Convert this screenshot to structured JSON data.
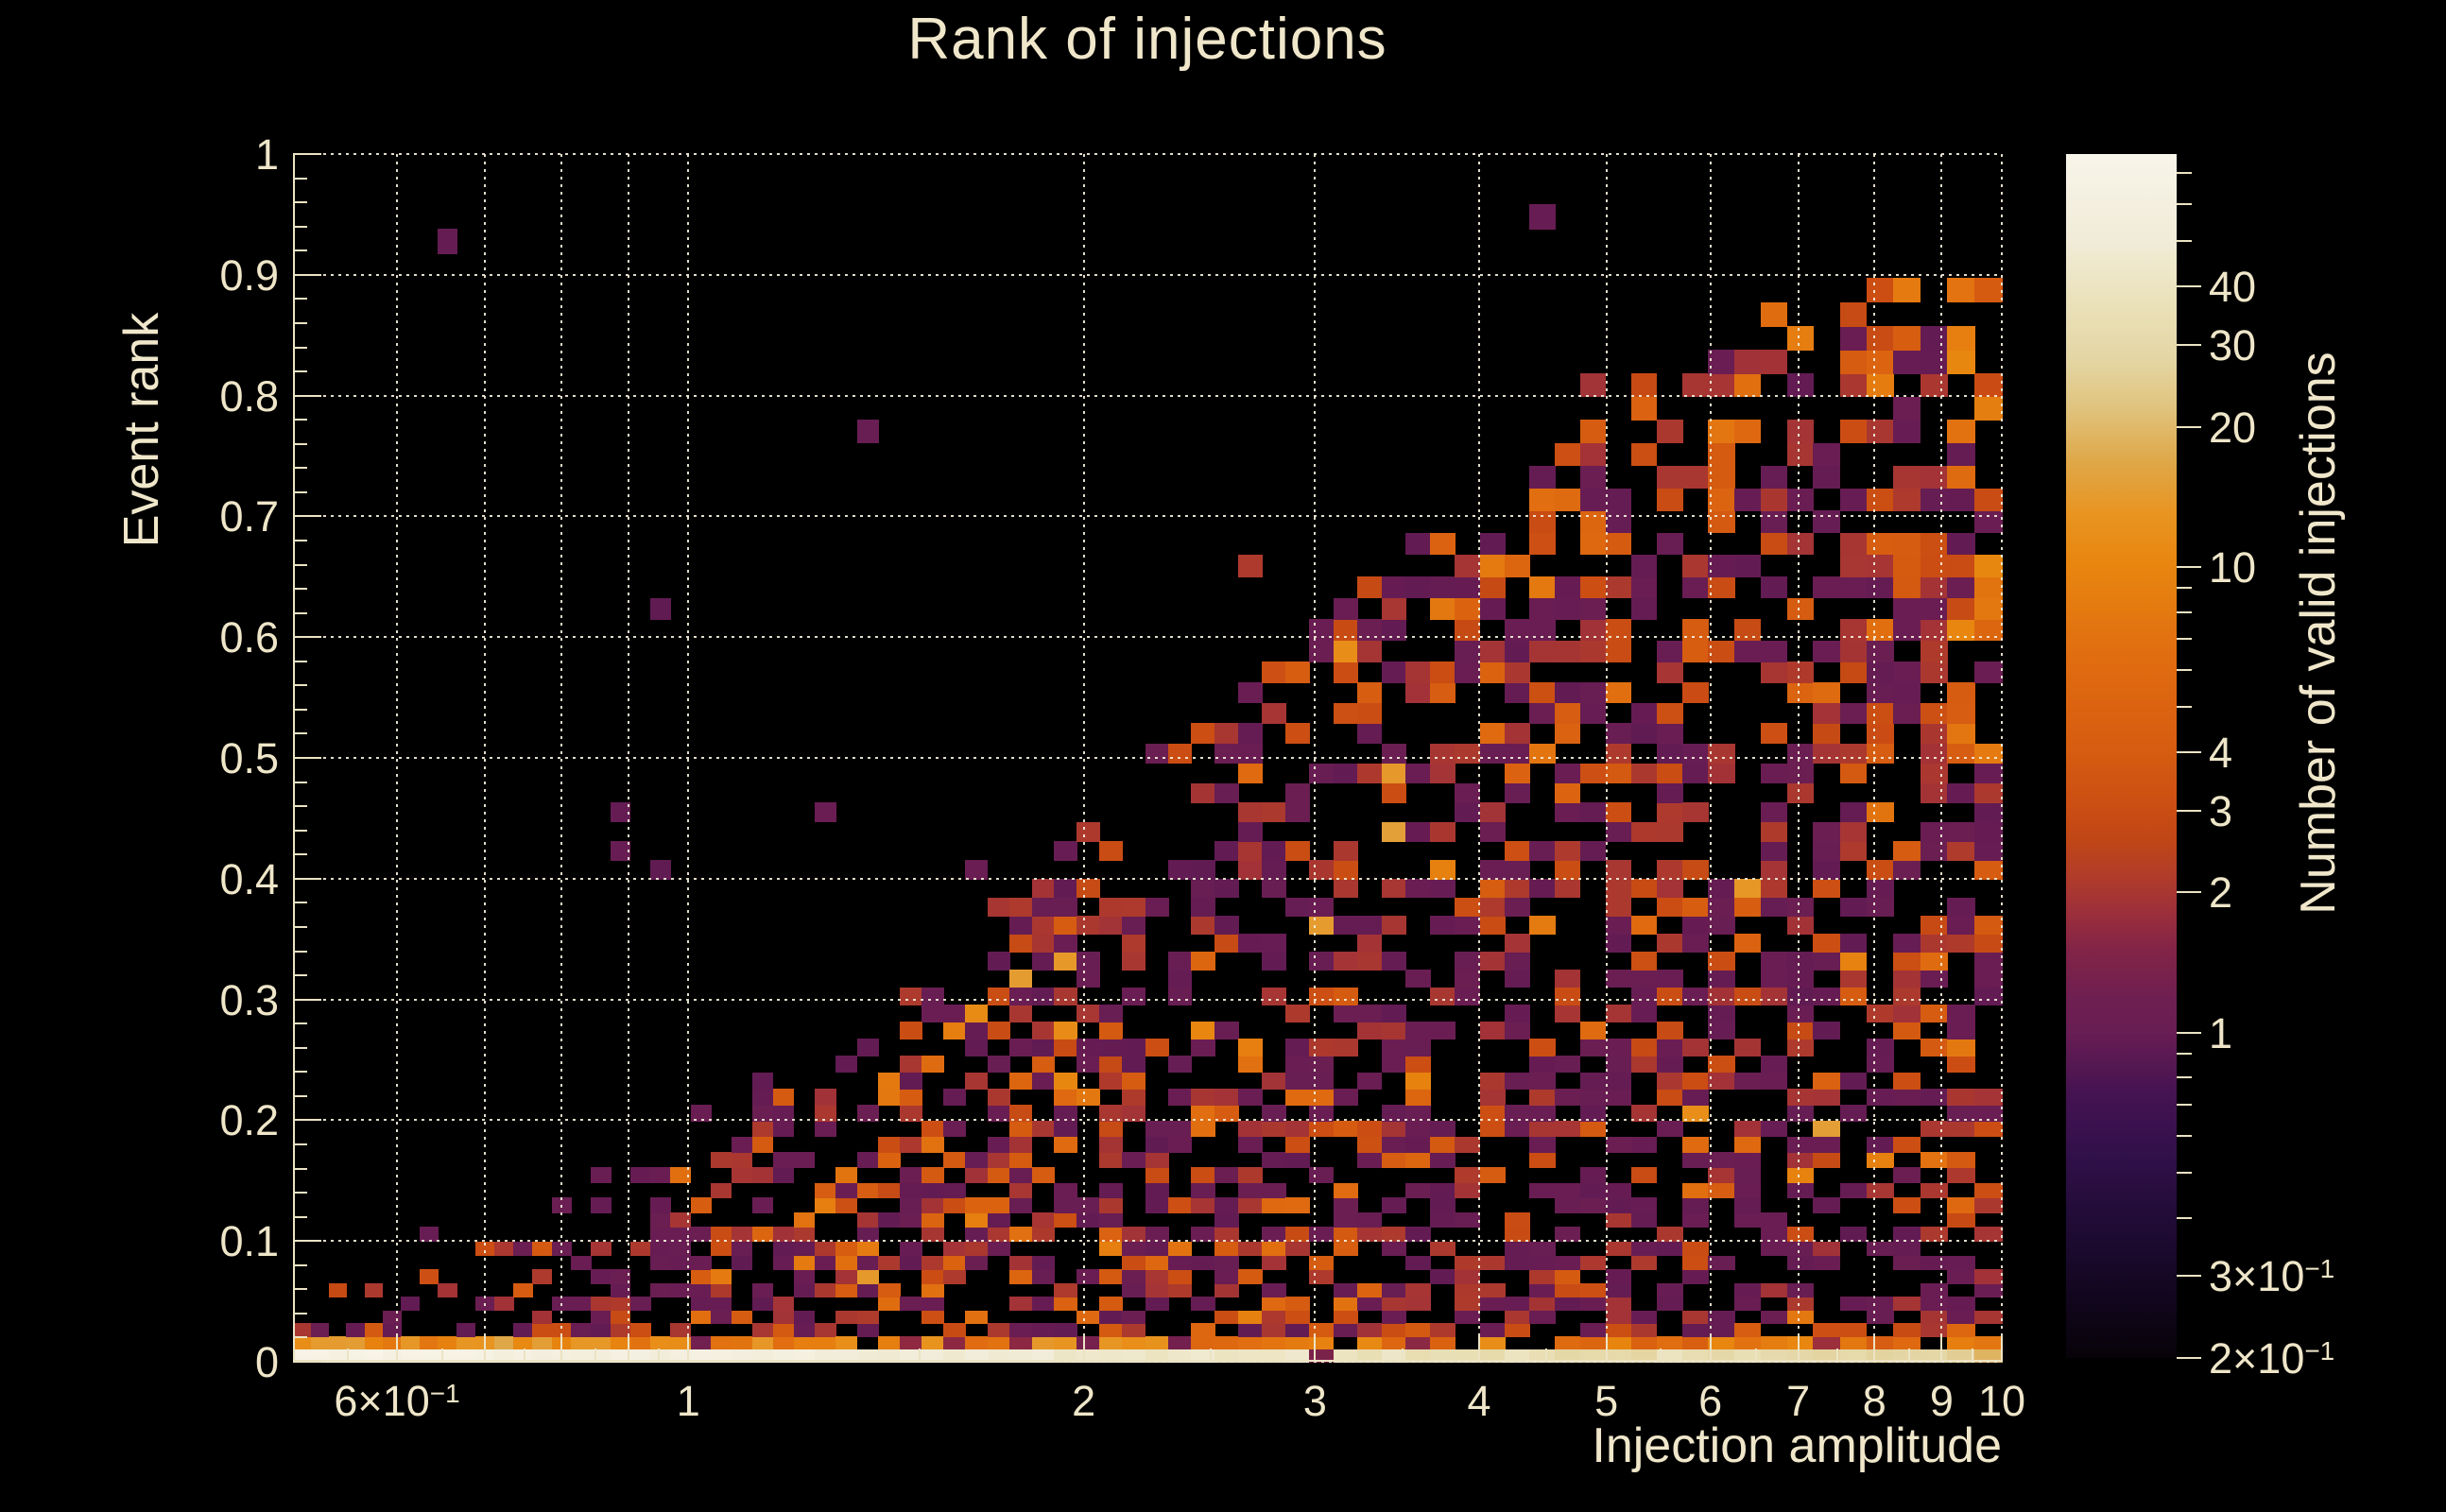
{
  "figure": {
    "background": "#000000",
    "text_color": "#efe6c9",
    "grid_color": "#f4eeda",
    "axis_color": "#ece3c4"
  },
  "chart_data": {
    "type": "heatmap",
    "title": "Rank of injections",
    "xlabel": "Injection amplitude",
    "ylabel": "Event rank",
    "zlabel": "Number of valid injections",
    "x_scale": "log",
    "x_range": [
      0.5,
      10
    ],
    "y_scale": "linear",
    "y_range": [
      0,
      1
    ],
    "z_scale": "log",
    "z_range": [
      0.2,
      77
    ],
    "grid": "on",
    "x_grid_values": [
      0.6,
      0.7,
      0.8,
      0.9,
      1,
      2,
      3,
      4,
      5,
      6,
      7,
      8,
      9,
      10
    ],
    "y_grid_values": [
      0,
      0.1,
      0.2,
      0.3,
      0.4,
      0.5,
      0.6,
      0.7,
      0.8,
      0.9,
      1
    ],
    "x_ticks_major": [
      0.6,
      0.7,
      0.8,
      0.9,
      1,
      2,
      3,
      4,
      5,
      6,
      7,
      8,
      9,
      10
    ],
    "x_ticks_minor": [
      0.55,
      0.65,
      0.75,
      0.85,
      0.95,
      1.5,
      2.5,
      3.5,
      4.5,
      5.5,
      6.5,
      7.5,
      8.5,
      9.5
    ],
    "x_tick_labels": [
      {
        "v": 0.6,
        "m": "6×10",
        "s": "−1"
      },
      {
        "v": 1,
        "m": "1",
        "s": ""
      },
      {
        "v": 2,
        "m": "2",
        "s": ""
      },
      {
        "v": 3,
        "m": "3",
        "s": ""
      },
      {
        "v": 4,
        "m": "4",
        "s": ""
      },
      {
        "v": 5,
        "m": "5",
        "s": ""
      },
      {
        "v": 6,
        "m": "6",
        "s": ""
      },
      {
        "v": 7,
        "m": "7",
        "s": ""
      },
      {
        "v": 8,
        "m": "8",
        "s": ""
      },
      {
        "v": 9,
        "m": "9",
        "s": ""
      },
      {
        "v": 10,
        "m": "10",
        "s": ""
      }
    ],
    "y_tick_labels": [
      {
        "v": 1,
        "m": "1"
      },
      {
        "v": 0.9,
        "m": "0.9"
      },
      {
        "v": 0.8,
        "m": "0.8"
      },
      {
        "v": 0.7,
        "m": "0.7"
      },
      {
        "v": 0.6,
        "m": "0.6"
      },
      {
        "v": 0.5,
        "m": "0.5"
      },
      {
        "v": 0.4,
        "m": "0.4"
      },
      {
        "v": 0.3,
        "m": "0.3"
      },
      {
        "v": 0.2,
        "m": "0.2"
      },
      {
        "v": 0.1,
        "m": "0.1"
      },
      {
        "v": 0,
        "m": "0"
      }
    ],
    "y_minor_step": 0.02,
    "z_tick_labels": [
      {
        "v": 40,
        "m": "40",
        "s": ""
      },
      {
        "v": 30,
        "m": "30",
        "s": ""
      },
      {
        "v": 20,
        "m": "20",
        "s": ""
      },
      {
        "v": 10,
        "m": "10",
        "s": ""
      },
      {
        "v": 4,
        "m": "4",
        "s": ""
      },
      {
        "v": 3,
        "m": "3",
        "s": ""
      },
      {
        "v": 2,
        "m": "2",
        "s": ""
      },
      {
        "v": 1,
        "m": "1",
        "s": ""
      },
      {
        "v": 0.3,
        "m": "3×10",
        "s": "−1"
      },
      {
        "v": 0.2,
        "m": "2×10",
        "s": "−1"
      }
    ],
    "z_ticks_minor": [
      70,
      60,
      50,
      9,
      8,
      7,
      6,
      5,
      0.9,
      0.8,
      0.7,
      0.6,
      0.5,
      0.4
    ],
    "palette_stops": [
      [
        0.0,
        "#070309"
      ],
      [
        0.06,
        "#140722"
      ],
      [
        0.12,
        "#220c38"
      ],
      [
        0.17,
        "#32104a"
      ],
      [
        0.22,
        "#451352"
      ],
      [
        0.27,
        "#681d53"
      ],
      [
        0.3,
        "#6f1f51"
      ],
      [
        0.34,
        "#832447"
      ],
      [
        0.375,
        "#a03138"
      ],
      [
        0.4,
        "#b13c2a"
      ],
      [
        0.43,
        "#c04616"
      ],
      [
        0.46,
        "#cc4e13"
      ],
      [
        0.5,
        "#d55b11"
      ],
      [
        0.53,
        "#da6110"
      ],
      [
        0.58,
        "#e06c10"
      ],
      [
        0.62,
        "#e47910"
      ],
      [
        0.66,
        "#e8860f"
      ],
      [
        0.7,
        "#e89420"
      ],
      [
        0.745,
        "#dfa849"
      ],
      [
        0.79,
        "#e0c47f"
      ],
      [
        0.83,
        "#e4d6a4"
      ],
      [
        0.88,
        "#ebe2bc"
      ],
      [
        0.93,
        "#f1ecd8"
      ],
      [
        1.0,
        "#f8f5ea"
      ]
    ],
    "envelope_max_rank_vs_amplitude": [
      [
        0.5,
        0.05
      ],
      [
        0.6,
        0.07
      ],
      [
        0.7,
        0.1
      ],
      [
        0.8,
        0.12
      ],
      [
        0.9,
        0.14
      ],
      [
        1.0,
        0.17
      ],
      [
        1.1,
        0.2
      ],
      [
        1.3,
        0.25
      ],
      [
        1.5,
        0.31
      ],
      [
        1.7,
        0.35
      ],
      [
        2.0,
        0.44
      ],
      [
        2.3,
        0.5
      ],
      [
        2.6,
        0.55
      ],
      [
        3.0,
        0.62
      ],
      [
        3.5,
        0.66
      ],
      [
        4.0,
        0.7
      ],
      [
        4.5,
        0.75
      ],
      [
        5.0,
        0.79
      ],
      [
        5.5,
        0.82
      ],
      [
        6.0,
        0.84
      ],
      [
        7.0,
        0.87
      ],
      [
        8.0,
        0.885
      ],
      [
        9.0,
        0.9
      ],
      [
        10.0,
        0.92
      ]
    ],
    "bottom_row_counts": {
      "left": 70,
      "right": 22
    },
    "second_row_counts": {
      "left": 12,
      "right": 6
    },
    "generation": {
      "seed": 1337,
      "cols": 76,
      "rows": 64,
      "col_width_growth": 0.55,
      "row_height_growth": 1.0,
      "fill_below_envelope": 0.47,
      "fill_near_envelope": 0.38,
      "fill_above_envelope": 0.006,
      "count_weights": {
        "1": 0.5,
        "2": 0.26,
        "3": 0.11,
        "4": 0.06,
        "5-6": 0.035,
        "7-9": 0.02,
        "10-16": 0.015
      }
    }
  }
}
